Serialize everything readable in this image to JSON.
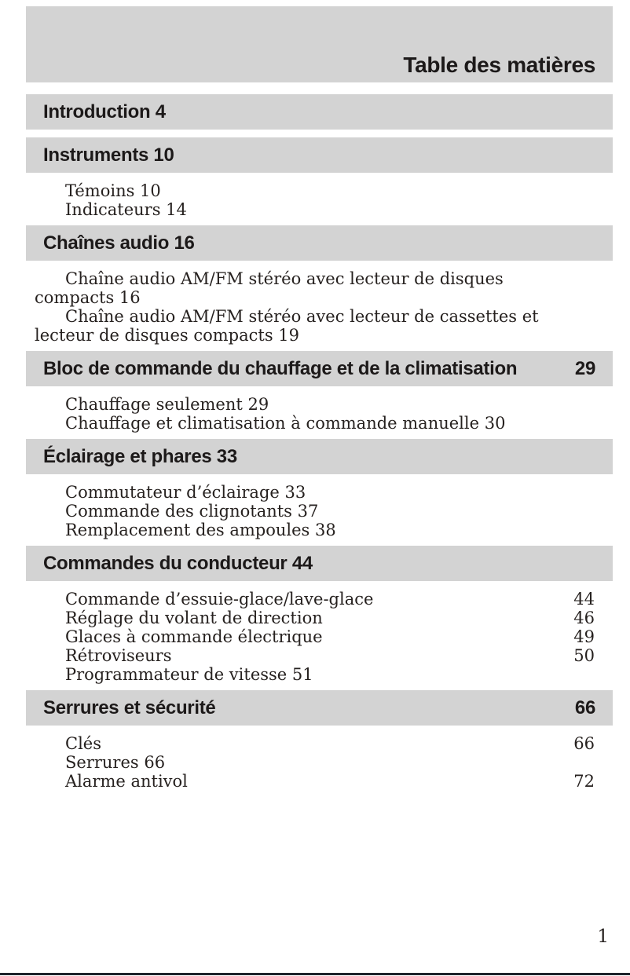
{
  "page": {
    "title": "Table des matières",
    "footer_page_number": "1"
  },
  "colors": {
    "band_background": "#d3d3d3",
    "heading_text": "#1c1919",
    "body_text": "#26211f",
    "bottom_rule": "#1e242c"
  },
  "sections": [
    {
      "heading": "Introduction 4",
      "entries": []
    },
    {
      "heading": "Instruments 10",
      "entries": [
        {
          "label": "Témoins 10"
        },
        {
          "label": "Indicateurs 14"
        }
      ]
    },
    {
      "heading": "Chaînes audio 16",
      "entries": [
        {
          "label": "Chaîne audio AM/FM stéréo avec lecteur de disques compacts 16"
        },
        {
          "label": "Chaîne audio AM/FM stéréo avec lecteur de cassettes et lecteur de disques compacts 19"
        }
      ]
    },
    {
      "heading": "Bloc de commande du chauffage et de la climatisation",
      "page": "29",
      "entries": [
        {
          "label": "Chauffage seulement 29"
        },
        {
          "label": "Chauffage et climatisation à commande manuelle 30"
        }
      ]
    },
    {
      "heading": "Éclairage et phares 33",
      "entries": [
        {
          "label": "Commutateur d’éclairage 33"
        },
        {
          "label": "Commande des clignotants 37"
        },
        {
          "label": "Remplacement des ampoules 38"
        }
      ]
    },
    {
      "heading": "Commandes du conducteur 44",
      "entries": [
        {
          "label": "Commande d’essuie-glace/lave-glace",
          "page": "44"
        },
        {
          "label": "Réglage du volant de direction",
          "page": "46"
        },
        {
          "label": "Glaces à commande électrique",
          "page": "49"
        },
        {
          "label": "Rétroviseurs",
          "page": "50"
        },
        {
          "label": "Programmateur de vitesse 51"
        }
      ]
    },
    {
      "heading": "Serrures et sécurité",
      "page": "66",
      "entries": [
        {
          "label": "Clés",
          "page": "66"
        },
        {
          "label": "Serrures 66"
        },
        {
          "label": "Alarme antivol",
          "page": "72"
        }
      ]
    }
  ]
}
